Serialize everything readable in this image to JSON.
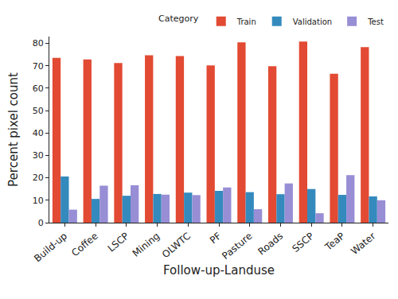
{
  "chart_data": {
    "type": "bar",
    "x_label": "Follow-up-Landuse",
    "y_label": "Percent pixel count",
    "legend_title": "Category",
    "legend": "top",
    "grid": false,
    "categories": [
      "Build-up",
      "Coffee",
      "LSCP",
      "Mining",
      "OLWTC",
      "PF",
      "Pasture",
      "Roads",
      "SSCP",
      "TeaP",
      "Water"
    ],
    "series": [
      {
        "name": "Train",
        "color": "#e24a33",
        "values": [
          73.5,
          72.8,
          71.2,
          74.7,
          74.3,
          70.1,
          80.4,
          69.8,
          80.8,
          66.4,
          78.3
        ]
      },
      {
        "name": "Validation",
        "color": "#348abd",
        "values": [
          20.6,
          10.6,
          12.0,
          12.8,
          13.4,
          14.2,
          13.6,
          12.7,
          15.0,
          12.4,
          11.7
        ]
      },
      {
        "name": "Test",
        "color": "#988ed5",
        "values": [
          5.8,
          16.5,
          16.7,
          12.5,
          12.3,
          15.7,
          6.0,
          17.5,
          4.2,
          21.2,
          10.0
        ]
      }
    ],
    "ylim": [
      0,
      83
    ],
    "yticks": [
      0,
      10,
      20,
      30,
      40,
      50,
      60,
      70,
      80
    ]
  }
}
